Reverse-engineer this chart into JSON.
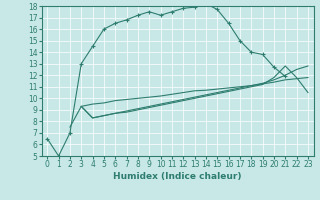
{
  "xlabel": "Humidex (Indice chaleur)",
  "bg_color": "#c8e8e8",
  "line_color": "#2e7d6e",
  "xlim": [
    -0.5,
    23.5
  ],
  "ylim": [
    5,
    18
  ],
  "yticks": [
    5,
    6,
    7,
    8,
    9,
    10,
    11,
    12,
    13,
    14,
    15,
    16,
    17,
    18
  ],
  "xticks": [
    0,
    1,
    2,
    3,
    4,
    5,
    6,
    7,
    8,
    9,
    10,
    11,
    12,
    13,
    14,
    15,
    16,
    17,
    18,
    19,
    20,
    21,
    22,
    23
  ],
  "line1_x": [
    0,
    1,
    2,
    3,
    4,
    5,
    6,
    7,
    8,
    9,
    10,
    11,
    12,
    13,
    14,
    15,
    16,
    17,
    18,
    19,
    20,
    21
  ],
  "line1_y": [
    6.5,
    5.0,
    7.0,
    13.0,
    14.5,
    16.0,
    16.5,
    16.8,
    17.2,
    17.5,
    17.2,
    17.5,
    17.8,
    17.9,
    18.2,
    17.7,
    16.5,
    15.0,
    14.0,
    13.8,
    12.7,
    11.9
  ],
  "line2_x": [
    3,
    4,
    5,
    6,
    7,
    8,
    9,
    10,
    11,
    12,
    13,
    14,
    15,
    16,
    17,
    18,
    19,
    20,
    21,
    22,
    23
  ],
  "line2_y": [
    9.3,
    9.5,
    9.6,
    9.8,
    9.9,
    10.0,
    10.1,
    10.2,
    10.35,
    10.5,
    10.65,
    10.7,
    10.8,
    10.9,
    11.0,
    11.1,
    11.25,
    11.4,
    11.6,
    11.7,
    11.8
  ],
  "line3_x": [
    3,
    4,
    5,
    6,
    7,
    8,
    9,
    10,
    11,
    12,
    13,
    14,
    15,
    16,
    17,
    18,
    19,
    20,
    21,
    22,
    23
  ],
  "line3_y": [
    9.3,
    8.3,
    8.5,
    8.7,
    8.9,
    9.1,
    9.3,
    9.5,
    9.7,
    9.9,
    10.1,
    10.3,
    10.5,
    10.7,
    10.9,
    11.1,
    11.3,
    11.6,
    12.0,
    12.5,
    12.8
  ],
  "line4_x": [
    2,
    3,
    4,
    5,
    6,
    7,
    8,
    9,
    10,
    11,
    12,
    13,
    14,
    15,
    16,
    17,
    18,
    19,
    20,
    21,
    22,
    23
  ],
  "line4_y": [
    7.5,
    9.3,
    8.3,
    8.5,
    8.7,
    8.8,
    9.0,
    9.2,
    9.4,
    9.6,
    9.8,
    10.0,
    10.2,
    10.4,
    10.6,
    10.8,
    11.0,
    11.2,
    11.8,
    12.8,
    11.8,
    10.5
  ]
}
